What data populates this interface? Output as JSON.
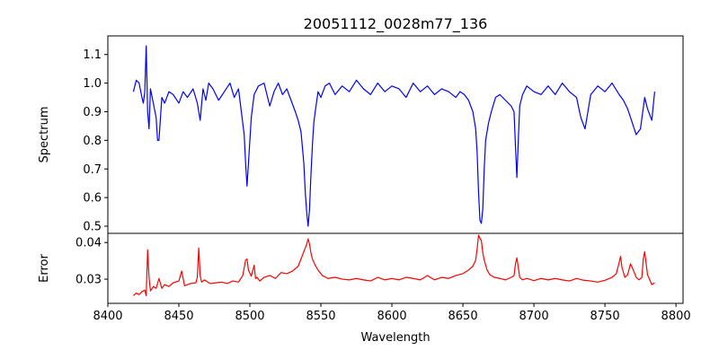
{
  "figure": {
    "title": "20051112_0028m77_136"
  },
  "chart_data": [
    {
      "type": "line",
      "panel": "spectrum",
      "title": "20051112_0028m77_136",
      "xlabel": "",
      "ylabel": "Spectrum",
      "xlim": [
        8400,
        8805
      ],
      "ylim": [
        0.475,
        1.165
      ],
      "yticks": [
        "0.5",
        "0.6",
        "0.7",
        "0.8",
        "0.9",
        "1.0",
        "1.1"
      ],
      "color": "#0000ff",
      "series": [
        {
          "x": [
            8418,
            8420,
            8422,
            8424,
            8425,
            8426,
            8427,
            8428,
            8429,
            8430,
            8432,
            8434,
            8435,
            8436,
            8438,
            8440,
            8443,
            8446,
            8450,
            8453,
            8456,
            8460,
            8463,
            8465,
            8467,
            8469,
            8471,
            8474,
            8478,
            8482,
            8486,
            8489,
            8492,
            8494,
            8496,
            8497,
            8498,
            8499,
            8501,
            8503,
            8506,
            8510,
            8514,
            8517,
            8520,
            8523,
            8526,
            8529,
            8532,
            8534,
            8536,
            8538,
            8539,
            8540,
            8541,
            8542,
            8543,
            8544,
            8545,
            8546,
            8548,
            8550,
            8553,
            8556,
            8560,
            8565,
            8570,
            8575,
            8580,
            8585,
            8590,
            8595,
            8600,
            8605,
            8610,
            8615,
            8620,
            8625,
            8630,
            8635,
            8640,
            8645,
            8648,
            8651,
            8654,
            8657,
            8659,
            8660,
            8661,
            8662,
            8663,
            8664,
            8665,
            8666,
            8668,
            8670,
            8673,
            8676,
            8680,
            8684,
            8686,
            8687,
            8688,
            8689,
            8690,
            8692,
            8695,
            8700,
            8705,
            8710,
            8715,
            8720,
            8725,
            8730,
            8733,
            8736,
            8740,
            8745,
            8750,
            8755,
            8760,
            8763,
            8766,
            8768,
            8770,
            8772,
            8775,
            8778,
            8780,
            8783,
            8785
          ],
          "y": [
            0.97,
            1.01,
            1.0,
            0.95,
            0.93,
            0.97,
            1.13,
            0.9,
            0.84,
            0.98,
            0.93,
            0.88,
            0.8,
            0.8,
            0.95,
            0.93,
            0.97,
            0.96,
            0.93,
            0.97,
            0.95,
            0.98,
            0.93,
            0.87,
            0.98,
            0.94,
            1.0,
            0.98,
            0.94,
            0.97,
            1.0,
            0.95,
            0.98,
            0.9,
            0.82,
            0.72,
            0.64,
            0.72,
            0.88,
            0.96,
            0.99,
            1.0,
            0.92,
            0.97,
            1.0,
            0.96,
            0.98,
            0.94,
            0.9,
            0.87,
            0.83,
            0.72,
            0.62,
            0.55,
            0.5,
            0.56,
            0.68,
            0.78,
            0.86,
            0.9,
            0.97,
            0.95,
            0.99,
            1.0,
            0.96,
            0.99,
            0.97,
            1.01,
            0.98,
            0.96,
            1.0,
            0.97,
            0.99,
            0.98,
            0.95,
            1.0,
            0.97,
            0.99,
            0.96,
            0.98,
            0.97,
            0.95,
            0.97,
            0.96,
            0.94,
            0.9,
            0.84,
            0.76,
            0.62,
            0.52,
            0.51,
            0.56,
            0.7,
            0.8,
            0.86,
            0.9,
            0.95,
            0.96,
            0.94,
            0.92,
            0.9,
            0.78,
            0.67,
            0.8,
            0.92,
            0.96,
            0.99,
            0.97,
            0.96,
            0.99,
            0.96,
            1.0,
            0.97,
            0.95,
            0.88,
            0.84,
            0.96,
            0.99,
            0.97,
            1.0,
            0.96,
            0.94,
            0.91,
            0.88,
            0.85,
            0.82,
            0.84,
            0.95,
            0.91,
            0.87,
            0.97
          ]
        }
      ]
    },
    {
      "type": "line",
      "panel": "error",
      "title": "",
      "xlabel": "Wavelength",
      "ylabel": "Error",
      "xlim": [
        8400,
        8805
      ],
      "ylim": [
        0.0234,
        0.0425
      ],
      "xticks": [
        "8400",
        "8450",
        "8500",
        "8550",
        "8600",
        "8650",
        "8700",
        "8750",
        "8800"
      ],
      "yticks": [
        "0.03",
        "0.04"
      ],
      "color": "#ff0000",
      "series": [
        {
          "x": [
            8418,
            8420,
            8422,
            8424,
            8426,
            8427,
            8428,
            8429,
            8430,
            8432,
            8434,
            8436,
            8438,
            8440,
            8443,
            8446,
            8450,
            8452,
            8454,
            8458,
            8462,
            8463,
            8464,
            8465,
            8466,
            8468,
            8472,
            8476,
            8480,
            8484,
            8488,
            8492,
            8495,
            8497,
            8498,
            8499,
            8501,
            8503,
            8504,
            8505,
            8507,
            8510,
            8514,
            8518,
            8522,
            8526,
            8530,
            8534,
            8537,
            8539,
            8540,
            8541,
            8542,
            8543,
            8544,
            8546,
            8548,
            8551,
            8555,
            8560,
            8565,
            8570,
            8575,
            8580,
            8585,
            8590,
            8595,
            8600,
            8605,
            8610,
            8615,
            8620,
            8625,
            8630,
            8635,
            8640,
            8645,
            8650,
            8654,
            8657,
            8659,
            8660,
            8661,
            8662,
            8663,
            8664,
            8665,
            8667,
            8669,
            8672,
            8676,
            8680,
            8684,
            8686,
            8687,
            8688,
            8689,
            8690,
            8692,
            8695,
            8700,
            8705,
            8710,
            8715,
            8720,
            8725,
            8730,
            8735,
            8740,
            8745,
            8750,
            8755,
            8758,
            8760,
            8761,
            8762,
            8764,
            8766,
            8768,
            8770,
            8772,
            8774,
            8776,
            8777,
            8778,
            8780,
            8783,
            8785
          ],
          "y": [
            0.0255,
            0.0262,
            0.0258,
            0.0266,
            0.027,
            0.0255,
            0.038,
            0.0305,
            0.0268,
            0.028,
            0.0275,
            0.0302,
            0.0275,
            0.0285,
            0.028,
            0.029,
            0.0295,
            0.0322,
            0.0282,
            0.0288,
            0.029,
            0.0305,
            0.0385,
            0.031,
            0.0292,
            0.0298,
            0.0288,
            0.029,
            0.0292,
            0.0288,
            0.0295,
            0.0292,
            0.031,
            0.0352,
            0.0355,
            0.0325,
            0.0308,
            0.0338,
            0.0302,
            0.0305,
            0.0295,
            0.0305,
            0.031,
            0.0302,
            0.0318,
            0.0315,
            0.0322,
            0.0335,
            0.0365,
            0.0385,
            0.0395,
            0.041,
            0.0395,
            0.0372,
            0.0355,
            0.0338,
            0.0325,
            0.031,
            0.0302,
            0.0305,
            0.03,
            0.0298,
            0.0302,
            0.0298,
            0.0295,
            0.0305,
            0.0298,
            0.0302,
            0.0298,
            0.0305,
            0.0302,
            0.0298,
            0.031,
            0.0298,
            0.0305,
            0.0302,
            0.031,
            0.0315,
            0.0325,
            0.0335,
            0.0352,
            0.0382,
            0.042,
            0.0412,
            0.0405,
            0.0372,
            0.0352,
            0.0325,
            0.0312,
            0.0305,
            0.0302,
            0.0298,
            0.0305,
            0.031,
            0.0342,
            0.0358,
            0.0332,
            0.0305,
            0.0298,
            0.0302,
            0.0296,
            0.0302,
            0.0298,
            0.0302,
            0.0298,
            0.0295,
            0.0302,
            0.0297,
            0.0295,
            0.0292,
            0.0297,
            0.0305,
            0.0315,
            0.0345,
            0.0362,
            0.0332,
            0.0305,
            0.0312,
            0.0342,
            0.0325,
            0.0305,
            0.0298,
            0.0305,
            0.0355,
            0.0375,
            0.0312,
            0.0285,
            0.029
          ]
        }
      ]
    }
  ]
}
